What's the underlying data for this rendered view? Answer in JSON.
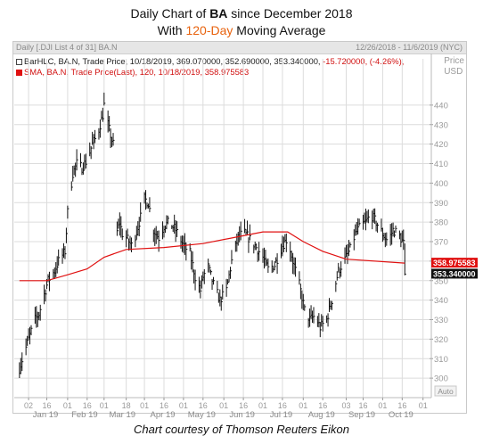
{
  "title": {
    "line1_prefix": "Daily Chart of ",
    "line1_ticker": "BA",
    "line1_suffix": " since December 2018",
    "line2_prefix": "With ",
    "line2_highlight": "120-Day",
    "line2_suffix": " Moving Average"
  },
  "panel": {
    "header_left": "Daily [.DJI List 4 of 31] BA.N",
    "header_right": "12/26/2018 - 11/6/2019 (NYC)",
    "price_label": "Price",
    "currency_label": "USD",
    "zoom_label": "Auto"
  },
  "legend": {
    "bar_text": "BarHLC, BA.N, Trade Price, 10/18/2019, 369.070000, 352.690000, 353.340000, ",
    "bar_change": "-15.720000, (-4.26%),",
    "sma_text": "SMA, BA.N, Trade Price(Last),  120,  10/18/2019, 358.975583"
  },
  "colors": {
    "price_bars": "#111111",
    "sma_line": "#e01010",
    "sma_tag_bg": "#e01010",
    "last_tag_bg": "#111111",
    "grid": "#dcdcdc",
    "accent_title": "#e8620d"
  },
  "chart_data": {
    "type": "line",
    "title": "Daily Chart of BA since December 2018 With 120-Day Moving Average",
    "xlabel": "",
    "ylabel": "Price USD",
    "ylim": [
      290,
      450
    ],
    "y_ticks": [
      300,
      310,
      320,
      330,
      340,
      350,
      360,
      370,
      380,
      390,
      400,
      410,
      420,
      430,
      440
    ],
    "x_tick_labels": [
      "02",
      "16",
      "01",
      "16",
      "01",
      "18",
      "01",
      "16",
      "01",
      "16",
      "01",
      "16",
      "01",
      "16",
      "01",
      "16",
      "03",
      "16",
      "01",
      "16",
      "01"
    ],
    "x_tick_dates": [
      "2019-01-02",
      "2019-01-16",
      "2019-02-01",
      "2019-02-16",
      "2019-03-01",
      "2019-03-18",
      "2019-04-01",
      "2019-04-16",
      "2019-05-01",
      "2019-05-16",
      "2019-06-01",
      "2019-06-16",
      "2019-07-01",
      "2019-07-16",
      "2019-08-01",
      "2019-08-16",
      "2019-09-03",
      "2019-09-16",
      "2019-10-01",
      "2019-10-16",
      "2019-11-01"
    ],
    "x_month_labels": [
      "Jan 19",
      "Feb 19",
      "Mar 19",
      "Apr 19",
      "May 19",
      "Jun 19",
      "Jul 19",
      "Aug 19",
      "Sep 19",
      "Oct 19"
    ],
    "grid": true,
    "legend_position": "top-left",
    "series": [
      {
        "name": "BarHLC, BA.N, Trade Price",
        "kind": "hlc",
        "points": [
          {
            "x": "2018-12-26",
            "v": 305
          },
          {
            "x": "2019-01-02",
            "v": 320
          },
          {
            "x": "2019-01-07",
            "v": 330
          },
          {
            "x": "2019-01-10",
            "v": 333
          },
          {
            "x": "2019-01-14",
            "v": 343
          },
          {
            "x": "2019-01-17",
            "v": 350
          },
          {
            "x": "2019-01-22",
            "v": 355
          },
          {
            "x": "2019-01-25",
            "v": 360
          },
          {
            "x": "2019-01-30",
            "v": 365
          },
          {
            "x": "2019-02-01",
            "v": 385
          },
          {
            "x": "2019-02-05",
            "v": 405
          },
          {
            "x": "2019-02-08",
            "v": 410
          },
          {
            "x": "2019-02-12",
            "v": 408
          },
          {
            "x": "2019-02-16",
            "v": 412
          },
          {
            "x": "2019-02-20",
            "v": 420
          },
          {
            "x": "2019-02-24",
            "v": 425
          },
          {
            "x": "2019-02-28",
            "v": 435
          },
          {
            "x": "2019-03-01",
            "v": 440
          },
          {
            "x": "2019-03-04",
            "v": 430
          },
          {
            "x": "2019-03-07",
            "v": 422
          },
          {
            "x": "2019-03-08",
            "v": 420
          },
          {
            "x": "2019-03-11",
            "v": 375
          },
          {
            "x": "2019-03-13",
            "v": 380
          },
          {
            "x": "2019-03-15",
            "v": 374
          },
          {
            "x": "2019-03-18",
            "v": 372
          },
          {
            "x": "2019-03-22",
            "v": 368
          },
          {
            "x": "2019-03-26",
            "v": 375
          },
          {
            "x": "2019-03-30",
            "v": 385
          },
          {
            "x": "2019-04-01",
            "v": 392
          },
          {
            "x": "2019-04-04",
            "v": 390
          },
          {
            "x": "2019-04-08",
            "v": 376
          },
          {
            "x": "2019-04-12",
            "v": 372
          },
          {
            "x": "2019-04-16",
            "v": 378
          },
          {
            "x": "2019-04-20",
            "v": 380
          },
          {
            "x": "2019-04-25",
            "v": 376
          },
          {
            "x": "2019-05-01",
            "v": 368
          },
          {
            "x": "2019-05-06",
            "v": 364
          },
          {
            "x": "2019-05-10",
            "v": 352
          },
          {
            "x": "2019-05-14",
            "v": 345
          },
          {
            "x": "2019-05-16",
            "v": 352
          },
          {
            "x": "2019-05-20",
            "v": 357
          },
          {
            "x": "2019-05-24",
            "v": 348
          },
          {
            "x": "2019-05-29",
            "v": 340
          },
          {
            "x": "2019-06-03",
            "v": 345
          },
          {
            "x": "2019-06-07",
            "v": 360
          },
          {
            "x": "2019-06-12",
            "v": 372
          },
          {
            "x": "2019-06-16",
            "v": 375
          },
          {
            "x": "2019-06-20",
            "v": 372
          },
          {
            "x": "2019-06-25",
            "v": 368
          },
          {
            "x": "2019-07-01",
            "v": 362
          },
          {
            "x": "2019-07-05",
            "v": 356
          },
          {
            "x": "2019-07-10",
            "v": 358
          },
          {
            "x": "2019-07-16",
            "v": 368
          },
          {
            "x": "2019-07-20",
            "v": 372
          },
          {
            "x": "2019-07-24",
            "v": 360
          },
          {
            "x": "2019-07-29",
            "v": 348
          },
          {
            "x": "2019-08-02",
            "v": 335
          },
          {
            "x": "2019-08-06",
            "v": 330
          },
          {
            "x": "2019-08-10",
            "v": 332
          },
          {
            "x": "2019-08-14",
            "v": 326
          },
          {
            "x": "2019-08-19",
            "v": 330
          },
          {
            "x": "2019-08-23",
            "v": 340
          },
          {
            "x": "2019-08-28",
            "v": 355
          },
          {
            "x": "2019-09-03",
            "v": 362
          },
          {
            "x": "2019-09-06",
            "v": 366
          },
          {
            "x": "2019-09-10",
            "v": 374
          },
          {
            "x": "2019-09-14",
            "v": 378
          },
          {
            "x": "2019-09-18",
            "v": 380
          },
          {
            "x": "2019-09-22",
            "v": 384
          },
          {
            "x": "2019-09-26",
            "v": 380
          },
          {
            "x": "2019-10-01",
            "v": 374
          },
          {
            "x": "2019-10-05",
            "v": 370
          },
          {
            "x": "2019-10-09",
            "v": 376
          },
          {
            "x": "2019-10-13",
            "v": 374
          },
          {
            "x": "2019-10-17",
            "v": 369
          },
          {
            "x": "2019-10-18",
            "v": 353.34
          }
        ]
      },
      {
        "name": "SMA, BA.N, Trade Price(Last), 120",
        "kind": "line",
        "points": [
          {
            "x": "2018-12-26",
            "v": 350
          },
          {
            "x": "2019-01-16",
            "v": 350
          },
          {
            "x": "2019-02-01",
            "v": 353
          },
          {
            "x": "2019-02-16",
            "v": 356
          },
          {
            "x": "2019-03-01",
            "v": 362
          },
          {
            "x": "2019-03-18",
            "v": 366
          },
          {
            "x": "2019-04-16",
            "v": 367
          },
          {
            "x": "2019-05-16",
            "v": 369
          },
          {
            "x": "2019-06-16",
            "v": 373
          },
          {
            "x": "2019-07-01",
            "v": 375
          },
          {
            "x": "2019-07-20",
            "v": 375
          },
          {
            "x": "2019-08-01",
            "v": 370
          },
          {
            "x": "2019-08-16",
            "v": 365
          },
          {
            "x": "2019-09-03",
            "v": 361
          },
          {
            "x": "2019-10-18",
            "v": 358.98
          }
        ]
      }
    ],
    "last_price_tag": "353.340000",
    "sma_tag": "358.975583"
  },
  "caption": "Chart courtesy of Thomson Reuters Eikon"
}
